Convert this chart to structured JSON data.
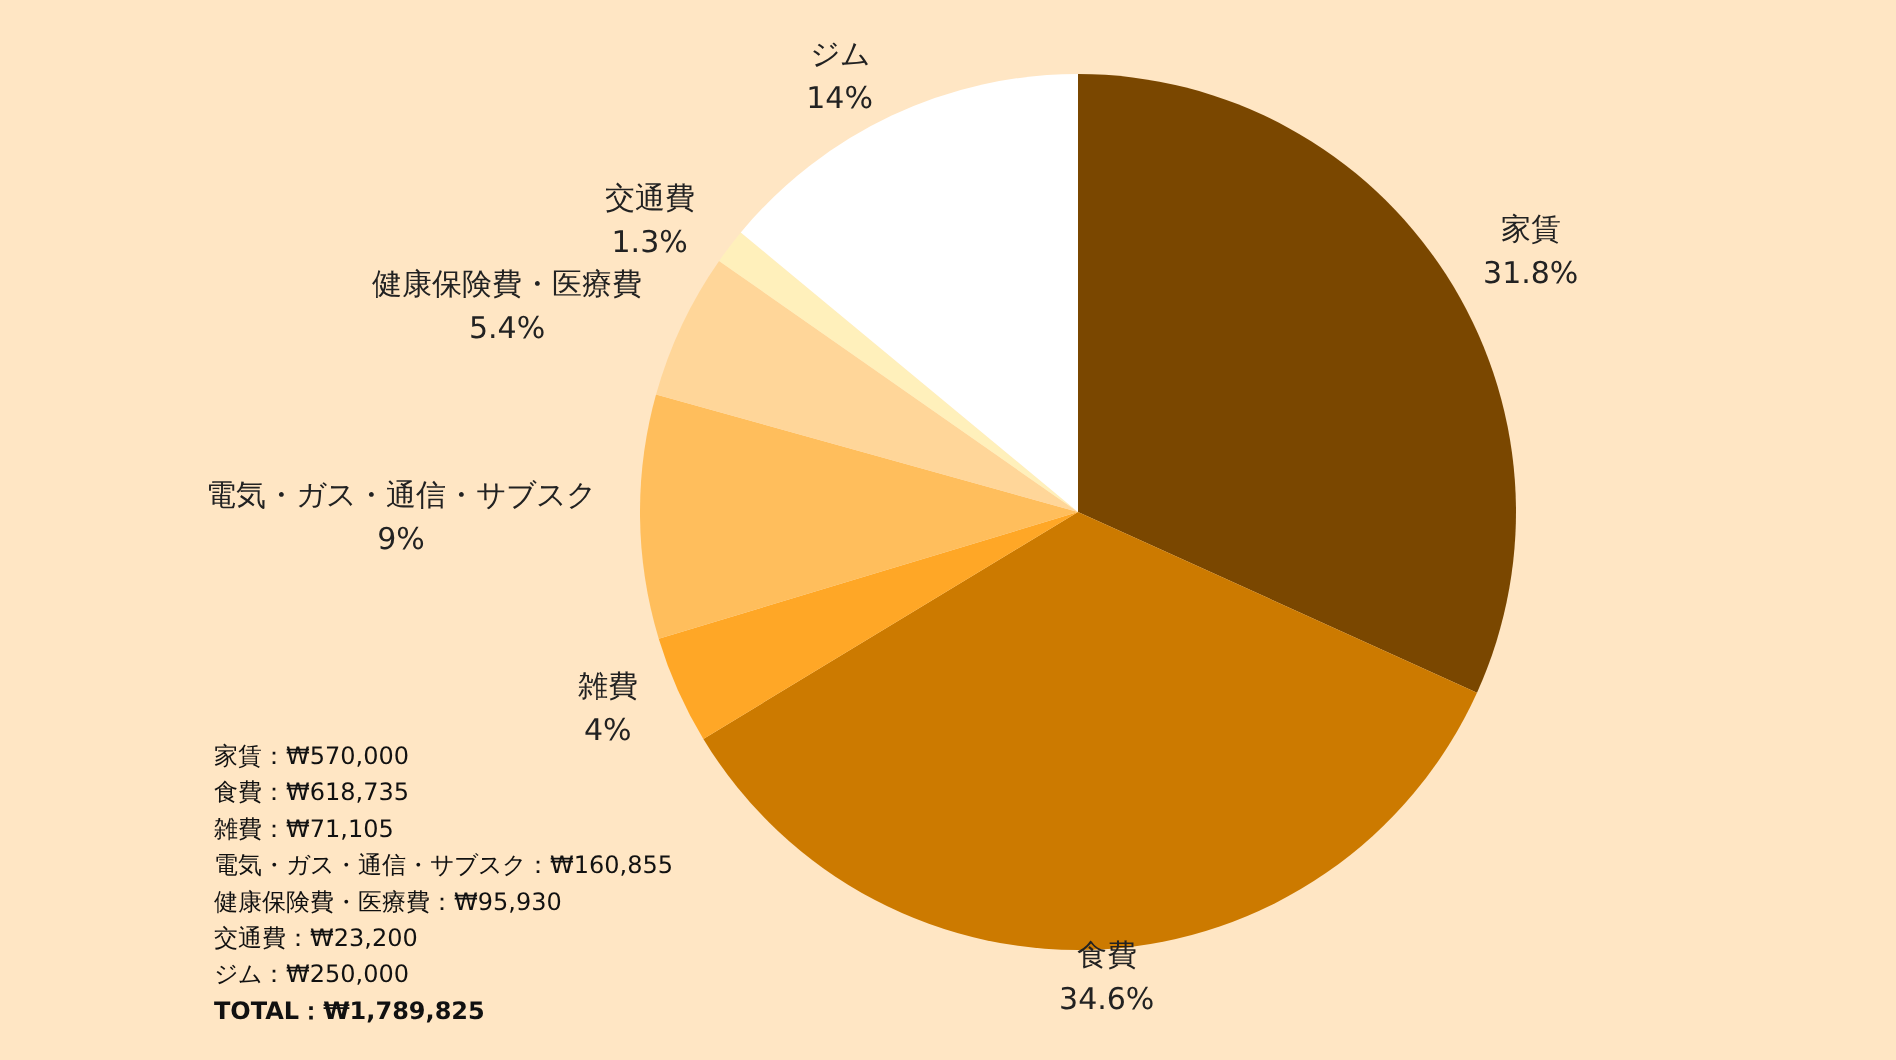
{
  "chart_data": {
    "type": "pie",
    "categories": [
      "家賃",
      "食費",
      "雑費",
      "電気・ガス・通信・サブスク",
      "健康保険費・医療費",
      "交通費",
      "ジム"
    ],
    "values": [
      31.8,
      34.6,
      4,
      9,
      5.4,
      1.3,
      14
    ],
    "value_labels": [
      "31.8%",
      "34.6%",
      "4%",
      "9%",
      "5.4%",
      "1.3%",
      "14%"
    ],
    "colors": [
      "#7a4700",
      "#cc7a00",
      "#ffa726",
      "#ffbe5c",
      "#ffd699",
      "#fff0bb",
      "#ffffff"
    ],
    "annotations": [
      "家賃：₩570,000",
      "食費：₩618,735",
      "雑費：₩71,105",
      "電気・ガス・通信・サブスク：₩160,855",
      "健康保険費・医療費：₩95,930",
      "交通費：₩23,200",
      "ジム：₩250,000",
      "TOTAL：₩1,789,825"
    ]
  }
}
